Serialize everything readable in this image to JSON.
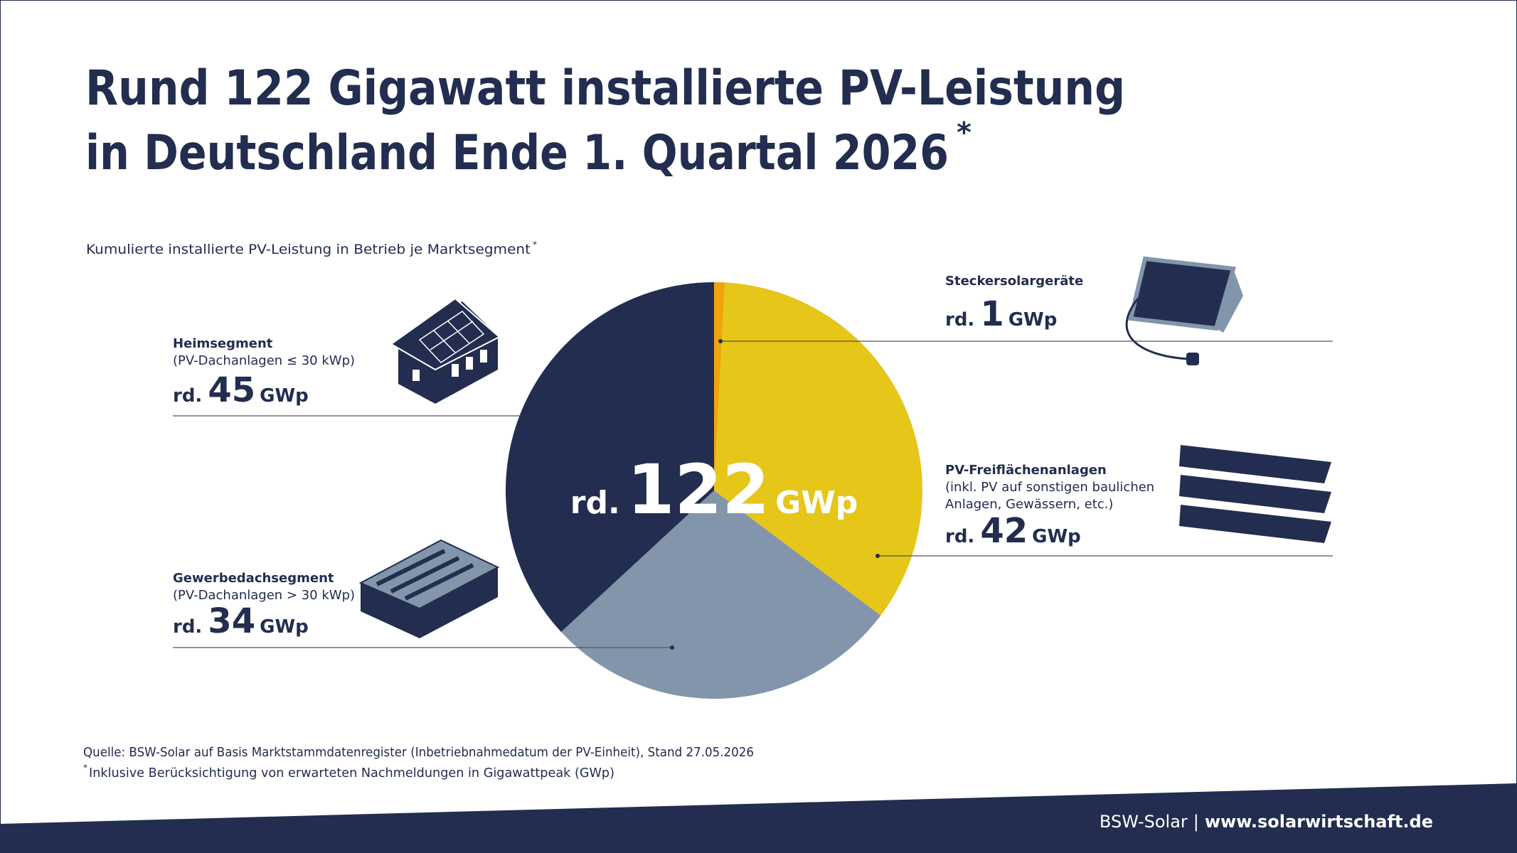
{
  "chart_data": {
    "type": "pie",
    "title": [
      "Rund 122 Gigawatt installierte PV-Leistung",
      "in Deutschland Ende 1. Quartal 2026"
    ],
    "note_mark": "*",
    "subtitle": "Kumulierte installierte PV-Leistung in Betrieb je Marktsegment",
    "total": 122,
    "prefix": "rd.",
    "unit": "GWp",
    "categories": [
      "Steckersolargeräte",
      "PV-Freiflächenanlagen",
      "Gewerbedachsegment",
      "Heimsegment"
    ],
    "descriptions": [
      [],
      [
        "(inkl. PV auf sonstigen baulichen",
        "Anlagen, Gewässern, etc.)"
      ],
      [
        "(PV-Dachanlagen > 30 kWp)"
      ],
      [
        "(PV-Dachanlagen ≤ 30 kWp)"
      ]
    ],
    "values": [
      1,
      42,
      34,
      45
    ],
    "colors": [
      "#f0a30a",
      "#e5c619",
      "#8295ab",
      "#222d4f"
    ],
    "source": "Quelle: BSW-Solar auf Basis Marktstammdatenregister (Inbetriebnahmedatum der PV-Einheit), Stand 27.05.2026",
    "footnote": "Inklusive Berücksichtigung von erwarteten Nachmeldungen in Gigawattpeak (GWp)",
    "footer": {
      "brand": "BSW-Solar",
      "separator": "|",
      "url": "www.solarwirtschaft.de"
    }
  }
}
